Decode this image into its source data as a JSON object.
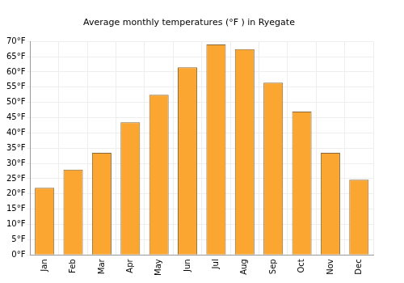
{
  "chart_data": {
    "type": "bar",
    "title": "Average monthly temperatures (°F ) in Ryegate",
    "categories": [
      "Jan",
      "Feb",
      "Mar",
      "Apr",
      "May",
      "Jun",
      "Jul",
      "Aug",
      "Sep",
      "Oct",
      "Nov",
      "Dec"
    ],
    "values": [
      22,
      28,
      33.5,
      43.5,
      52.5,
      61.5,
      69,
      67.5,
      56.5,
      47,
      33.5,
      24.7
    ],
    "color": "#fca632",
    "ylim": [
      0,
      70
    ],
    "yticks": [
      {
        "value": 0,
        "label": "0°F"
      },
      {
        "value": 5,
        "label": "5°F"
      },
      {
        "value": 10,
        "label": "10°F"
      },
      {
        "value": 15,
        "label": "15°F"
      },
      {
        "value": 20,
        "label": "20°F"
      },
      {
        "value": 25,
        "label": "25°F"
      },
      {
        "value": 30,
        "label": "30°F"
      },
      {
        "value": 35,
        "label": "35°F"
      },
      {
        "value": 40,
        "label": "40°F"
      },
      {
        "value": 45,
        "label": "45°F"
      },
      {
        "value": 50,
        "label": "50°F"
      },
      {
        "value": 55,
        "label": "55°F"
      },
      {
        "value": 60,
        "label": "60°F"
      },
      {
        "value": 65,
        "label": "65°F"
      },
      {
        "value": 70,
        "label": "70°F"
      }
    ],
    "grid": true
  }
}
